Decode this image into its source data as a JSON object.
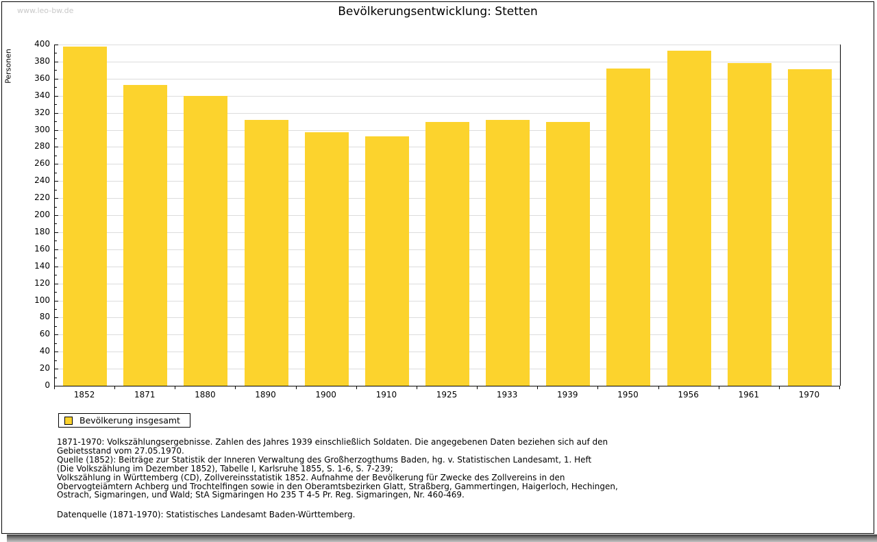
{
  "watermark": "www.leo-bw.de",
  "title": "Bevölkerungsentwicklung: Stetten",
  "chart_data": {
    "type": "bar",
    "title": "Bevölkerungsentwicklung: Stetten",
    "ylabel": "Personen",
    "xlabel": "",
    "ylim": [
      0,
      400
    ],
    "ytick_major_step": 20,
    "ytick_minor_step": 10,
    "grid": true,
    "legend_position": "bottom-left",
    "categories": [
      "1852",
      "1871",
      "1880",
      "1890",
      "1900",
      "1910",
      "1925",
      "1933",
      "1939",
      "1950",
      "1956",
      "1961",
      "1970"
    ],
    "series": [
      {
        "name": "Bevölkerung insgesamt",
        "values": [
          398,
          353,
          340,
          312,
          297,
          292,
          309,
          312,
          309,
          372,
          393,
          378,
          371
        ]
      }
    ]
  },
  "legend": {
    "label": "Bevölkerung insgesamt",
    "swatch_color": "#fcd32d"
  },
  "colors": {
    "bar": "#fcd32d",
    "grid": "#dcdcdc",
    "axis": "#000000",
    "watermark": "#c9c9c9"
  },
  "footnotes": {
    "lines": [
      "1871-1970: Volkszählungsergebnisse. Zahlen des Jahres 1939 einschließlich Soldaten. Die angegebenen Daten beziehen sich auf den",
      "Gebietsstand vom 27.05.1970.",
      "Quelle (1852): Beiträge zur Statistik der Inneren Verwaltung des Großherzogthums Baden, hg. v. Statistischen Landesamt, 1. Heft",
      "(Die Volkszählung im Dezember 1852), Tabelle I, Karlsruhe 1855, S. 1-6, S. 7-239;",
      "Volkszählung in Württemberg (CD), Zollvereinsstatistik 1852. Aufnahme der Bevölkerung für Zwecke des Zollvereins in den",
      "Obervogteiämtern Achberg und Trochtelfingen sowie in den Oberamtsbezirken Glatt, Straßberg, Gammertingen, Haigerloch, Hechingen,",
      "Ostrach, Sigmaringen, und Wald; StA Sigmaringen Ho 235 T 4-5 Pr. Reg. Sigmaringen, Nr. 460-469."
    ],
    "datasource": "Datenquelle (1871-1970): Statistisches Landesamt Baden-Württemberg."
  }
}
